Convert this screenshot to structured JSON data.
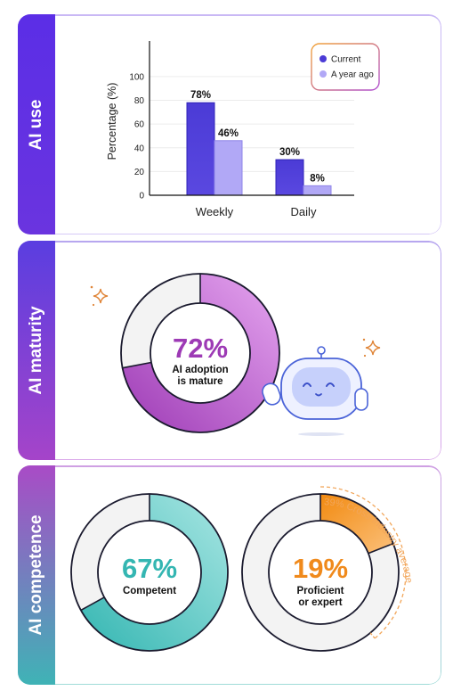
{
  "colors": {
    "current": "#4b3bd6",
    "year_ago": "#b1a8f6",
    "maturity_pct": "#9d3ab5",
    "competent_pct": "#34b6b2",
    "proficient_pct": "#f08a1c",
    "track": "#f3f3f3",
    "ring_outline": "#1a1a2e"
  },
  "panels": {
    "ai_use": {
      "label": "AI use"
    },
    "ai_maturity": {
      "label": "AI maturity"
    },
    "ai_competence": {
      "label": "AI competence"
    }
  },
  "chart_data": [
    {
      "type": "bar",
      "categories": [
        "Weekly",
        "Daily"
      ],
      "series": [
        {
          "name": "Current",
          "values": [
            78,
            30
          ]
        },
        {
          "name": "A year ago",
          "values": [
            46,
            8
          ]
        }
      ],
      "data_labels": {
        "Current": [
          "78%",
          "30%"
        ],
        "A year ago": [
          "46%",
          "8%"
        ]
      },
      "ylabel": "Percentage (%)",
      "yticks": [
        0,
        20,
        40,
        60,
        80,
        100
      ],
      "ylim": [
        0,
        130
      ],
      "grid": true,
      "legend_position": "top-right"
    },
    {
      "type": "pie",
      "variant": "donut",
      "values": [
        72,
        28
      ],
      "center_value": "72%",
      "center_label_lines": [
        "AI adoption",
        "is mature"
      ]
    },
    {
      "type": "pie",
      "variant": "donut",
      "values": [
        67,
        33
      ],
      "center_value": "67%",
      "center_label_lines": [
        "Competent"
      ]
    },
    {
      "type": "pie",
      "variant": "donut",
      "values": [
        19,
        81
      ],
      "center_value": "19%",
      "center_label_lines": [
        "Proficient",
        "or expert"
      ],
      "benchmark_value": 39,
      "benchmark_label": "39% Cross-industry average"
    }
  ]
}
